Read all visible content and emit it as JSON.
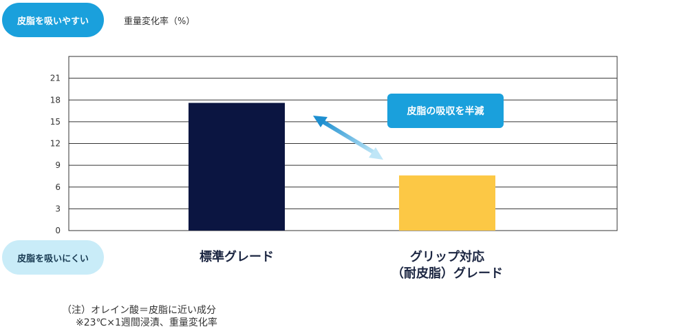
{
  "labels": {
    "top_pill": "皮脂を吸いやすい",
    "bottom_pill": "皮脂を吸いにくい",
    "y_unit": "重量変化率（%）",
    "callout": "皮脂の吸収を半減"
  },
  "notes": {
    "line1": "（注）オレイン酸＝皮脂に近い成分",
    "line2": "※23℃×1週間浸漬、重量変化率"
  },
  "chart_data": {
    "type": "bar",
    "categories": [
      "標準グレード",
      "グリップ対応\n（耐皮脂）グレード"
    ],
    "values": [
      17.6,
      7.6
    ],
    "ylim": [
      0,
      24
    ],
    "yticks": [
      0,
      3,
      6,
      9,
      12,
      15,
      18,
      21
    ],
    "grid": true,
    "bar_colors": [
      "#0b1541",
      "#fcc845"
    ],
    "annotation": "皮脂の吸収を半減"
  }
}
